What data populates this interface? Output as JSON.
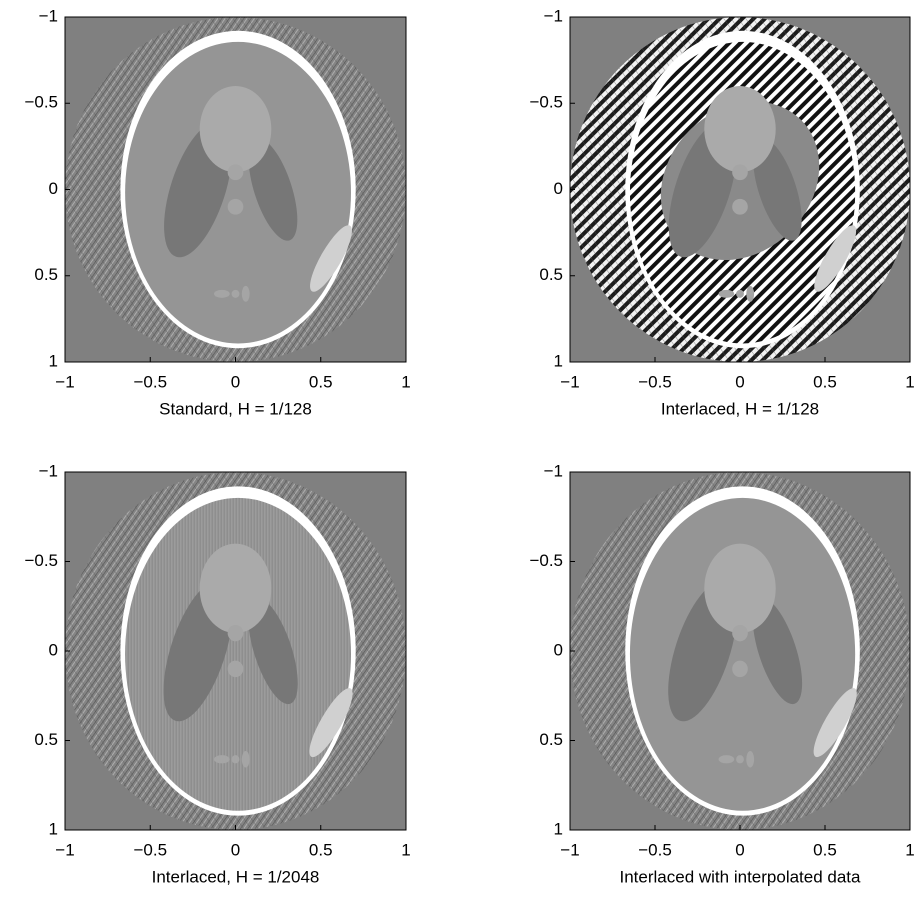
{
  "chart_data": [
    {
      "type": "image",
      "xlabel": "Standard, H = 1/128",
      "xlim": [
        -1,
        1
      ],
      "ylim": [
        1,
        -1
      ],
      "xticks": [
        {
          "value": -1,
          "label": "−1"
        },
        {
          "value": -0.5,
          "label": "−0.5"
        },
        0,
        0.5,
        1
      ],
      "yticks": [
        {
          "value": -1,
          "label": "−1"
        },
        {
          "value": -0.5,
          "label": "−0.5"
        },
        0,
        0.5,
        1
      ]
    },
    {
      "type": "image",
      "xlabel": "Interlaced, H = 1/128",
      "xlim": [
        -1,
        1
      ],
      "ylim": [
        1,
        -1
      ],
      "xticks": [
        {
          "value": -1,
          "label": "−1"
        },
        {
          "value": -0.5,
          "label": "−0.5"
        },
        0,
        0.5,
        1
      ],
      "yticks": [
        {
          "value": -1,
          "label": "−1"
        },
        {
          "value": -0.5,
          "label": "−0.5"
        },
        0,
        0.5,
        1
      ]
    },
    {
      "type": "image",
      "xlabel": "Interlaced, H = 1/2048",
      "xlim": [
        -1,
        1
      ],
      "ylim": [
        1,
        -1
      ],
      "xticks": [
        {
          "value": -1,
          "label": "−1"
        },
        {
          "value": -0.5,
          "label": "−0.5"
        },
        0,
        0.5,
        1
      ],
      "yticks": [
        {
          "value": -1,
          "label": "−1"
        },
        {
          "value": -0.5,
          "label": "−0.5"
        },
        0,
        0.5,
        1
      ]
    },
    {
      "type": "image",
      "xlabel": "Interlaced with interpolated data",
      "xlim": [
        -1,
        1
      ],
      "ylim": [
        1,
        -1
      ],
      "xticks": [
        {
          "value": -1,
          "label": "−1"
        },
        {
          "value": -0.5,
          "label": "−0.5"
        },
        0,
        0.5,
        1
      ],
      "yticks": [
        {
          "value": -1,
          "label": "−1"
        },
        {
          "value": -0.5,
          "label": "−0.5"
        },
        0,
        0.5,
        1
      ]
    }
  ]
}
